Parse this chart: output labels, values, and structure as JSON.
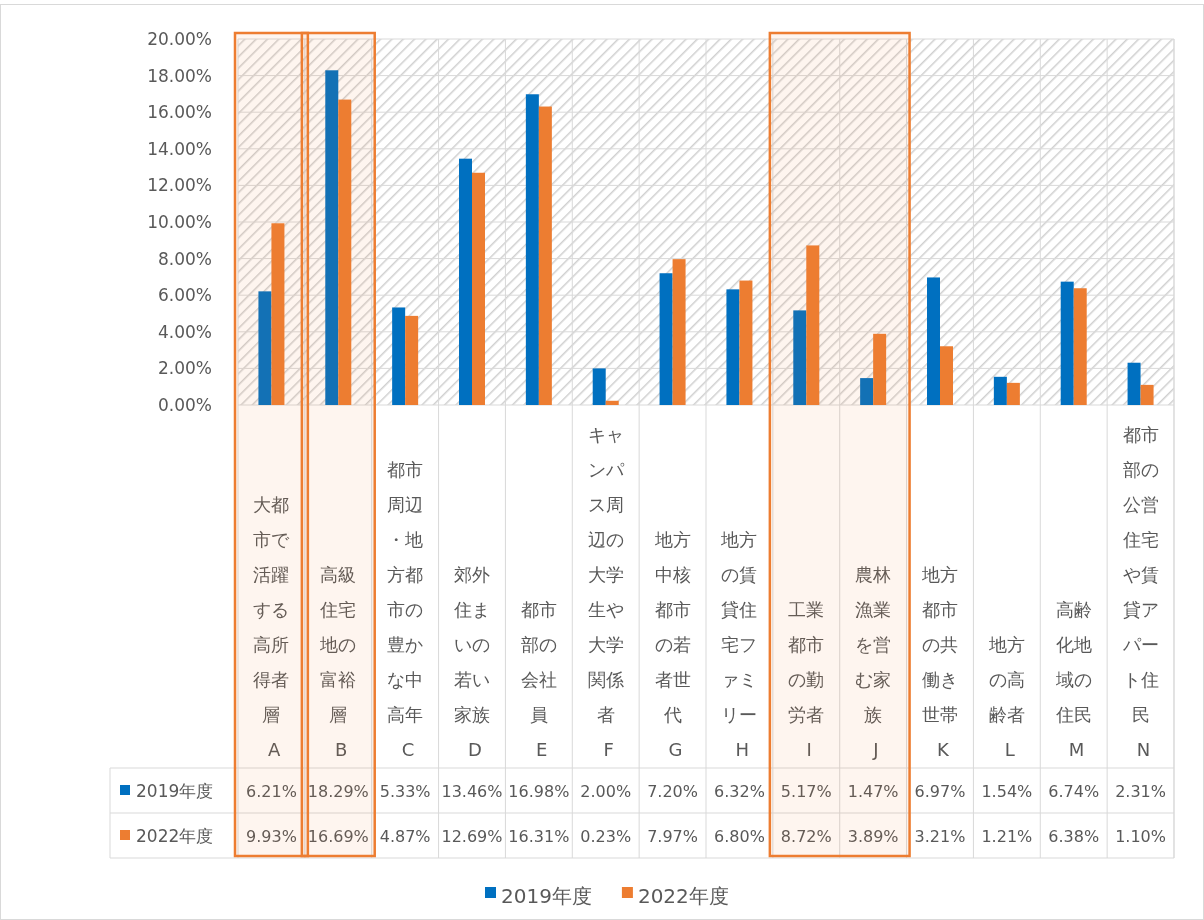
{
  "chart_data": {
    "type": "bar",
    "categories": [
      "大都市で活躍する高所得者層 A",
      "高級住宅地の富裕層 B",
      "都市周辺・地方都市の豊かな中高年 C",
      "郊外住まいの若い家族 D",
      "都市部の会社員 E",
      "キャンパス周辺の大学生や大学関係者 F",
      "地方中核都市の若者世代 G",
      "地方の賃貸住宅ファミリー H",
      "工業都市の勤労者 I",
      "農林漁業を営む家族 J",
      "地方都市の共働き世帯 K",
      "地方の高齢者 L",
      "高齢化地域の住民 M",
      "都市部の公営住宅や賃貸アパート住民 N"
    ],
    "series": [
      {
        "name": "2019年度",
        "color": "#0070c0",
        "values": [
          6.21,
          18.29,
          5.33,
          13.46,
          16.98,
          2.0,
          7.2,
          6.32,
          5.17,
          1.47,
          6.97,
          1.54,
          6.74,
          2.31
        ],
        "value_labels": [
          "6.21%",
          "18.29%",
          "5.33%",
          "13.46%",
          "16.98%",
          "2.00%",
          "7.20%",
          "6.32%",
          "5.17%",
          "1.47%",
          "6.97%",
          "1.54%",
          "6.74%",
          "2.31%"
        ]
      },
      {
        "name": "2022年度",
        "color": "#ed7d31",
        "values": [
          9.93,
          16.69,
          4.87,
          12.69,
          16.31,
          0.23,
          7.97,
          6.8,
          8.72,
          3.89,
          3.21,
          1.21,
          6.38,
          1.1
        ],
        "value_labels": [
          "9.93%",
          "16.69%",
          "4.87%",
          "12.69%",
          "16.31%",
          "0.23%",
          "7.97%",
          "6.80%",
          "8.72%",
          "3.89%",
          "3.21%",
          "1.21%",
          "6.38%",
          "1.10%"
        ]
      }
    ],
    "ylim": [
      0,
      20
    ],
    "yticks": [
      {
        "value": 0,
        "label": "0.00%"
      },
      {
        "value": 2,
        "label": "2.00%"
      },
      {
        "value": 4,
        "label": "4.00%"
      },
      {
        "value": 6,
        "label": "6.00%"
      },
      {
        "value": 8,
        "label": "8.00%"
      },
      {
        "value": 10,
        "label": "10.00%"
      },
      {
        "value": 12,
        "label": "12.00%"
      },
      {
        "value": 14,
        "label": "14.00%"
      },
      {
        "value": 16,
        "label": "16.00%"
      },
      {
        "value": 18,
        "label": "18.00%"
      },
      {
        "value": 20,
        "label": "20.00%"
      }
    ],
    "grid": true,
    "legend": "bottom",
    "bands": [
      {
        "axis": "x",
        "from": "大都市で活躍する高所得者層 A",
        "to": "大都市で活躍する高所得者層 A",
        "color": "#ed7d31"
      },
      {
        "axis": "x",
        "from": "高級住宅地の富裕層 B",
        "to": "高級住宅地の富裕層 B",
        "color": "#ed7d31"
      },
      {
        "axis": "x",
        "from": "工業都市の勤労者 I",
        "to": "農林漁業を営む家族 J",
        "color": "#ed7d31"
      }
    ]
  }
}
